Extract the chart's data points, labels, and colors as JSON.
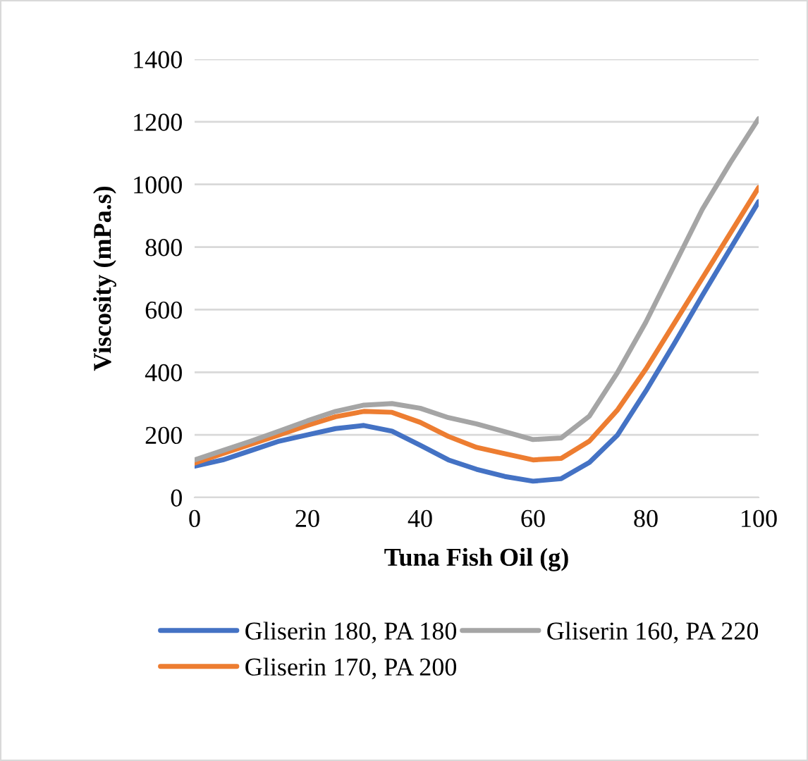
{
  "chart_data": {
    "type": "line",
    "xlabel": "Tuna Fish Oil (g)",
    "ylabel": "Viscosity (mPa.s)",
    "x": [
      0,
      5,
      10,
      15,
      20,
      25,
      30,
      35,
      40,
      45,
      50,
      55,
      60,
      65,
      70,
      75,
      80,
      85,
      90,
      95,
      100
    ],
    "series": [
      {
        "name": "Gliserin 180, PA 180",
        "color": "#4472c4",
        "values": [
          100,
          120,
          150,
          180,
          200,
          220,
          230,
          212,
          167,
          120,
          90,
          67,
          52,
          60,
          112,
          200,
          340,
          490,
          645,
          795,
          945
        ]
      },
      {
        "name": "Gliserin 170, PA 200",
        "color": "#ed7d31",
        "values": [
          110,
          140,
          170,
          200,
          230,
          258,
          275,
          272,
          240,
          195,
          160,
          140,
          120,
          125,
          180,
          280,
          410,
          555,
          700,
          845,
          990
        ]
      },
      {
        "name": "Gliserin 160, PA 220",
        "color": "#a5a5a5",
        "values": [
          120,
          150,
          180,
          212,
          245,
          275,
          295,
          300,
          285,
          255,
          235,
          210,
          185,
          190,
          260,
          400,
          560,
          740,
          920,
          1070,
          1210
        ]
      }
    ],
    "xlim": [
      0,
      100
    ],
    "xticks": [
      0,
      20,
      40,
      60,
      80,
      100
    ],
    "ylim": [
      0,
      1400
    ],
    "yticks": [
      0,
      200,
      400,
      600,
      800,
      1000,
      1200,
      1400
    ],
    "grid": "y",
    "legend": "bottom",
    "marker": "none",
    "line_style": "solid"
  }
}
